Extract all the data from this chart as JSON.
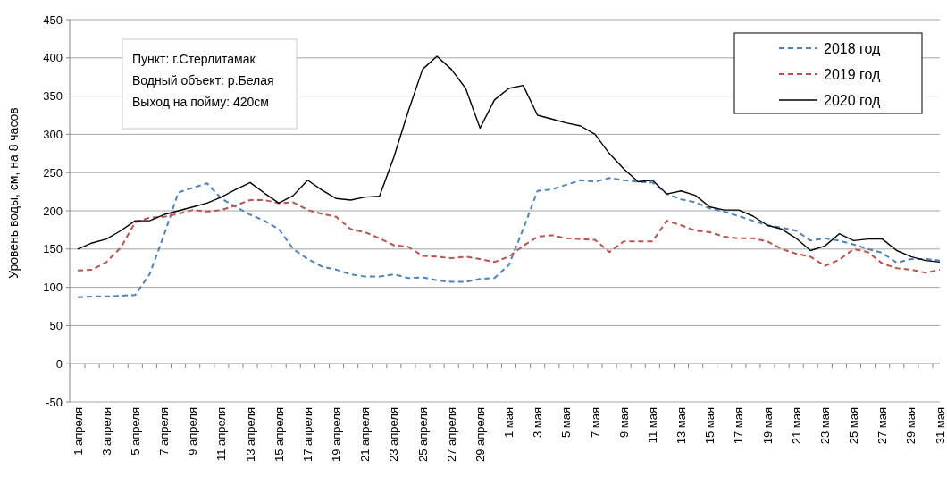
{
  "chart_data": {
    "type": "line",
    "ylabel": "Уровень воды, см, на 8 часов",
    "categories": [
      "1 апреля",
      null,
      "3 апреля",
      null,
      "5 апреля",
      null,
      "7 апреля",
      null,
      "9 апреля",
      null,
      "11 апреля",
      null,
      "13 апреля",
      null,
      "15 апреля",
      null,
      "17 апреля",
      null,
      "19 апреля",
      null,
      "21 апреля",
      null,
      "23 апреля",
      null,
      "25 апреля",
      null,
      "27 апреля",
      null,
      "29 апреля",
      null,
      "1 мая",
      null,
      "3 мая",
      null,
      "5 мая",
      null,
      "7 мая",
      null,
      "9 мая",
      null,
      "11 мая",
      null,
      "13 мая",
      null,
      "15 мая",
      null,
      "17 мая",
      null,
      "19 мая",
      null,
      "21 мая",
      null,
      "23 мая",
      null,
      "25 мая",
      null,
      "27 мая",
      null,
      "29 мая",
      null,
      "31 мая"
    ],
    "series": [
      {
        "name": "2018 год",
        "color": "#4f81bd",
        "line_style": "dashed",
        "values": [
          87,
          88,
          88,
          89,
          90,
          117,
          168,
          224,
          230,
          236,
          216,
          205,
          195,
          187,
          176,
          150,
          137,
          127,
          123,
          117,
          114,
          114,
          117,
          112,
          113,
          109,
          107,
          107,
          111,
          112,
          129,
          176,
          226,
          228,
          234,
          240,
          238,
          243,
          240,
          238,
          237,
          222,
          215,
          211,
          203,
          199,
          193,
          187,
          181,
          178,
          174,
          161,
          164,
          161,
          156,
          150,
          145,
          132,
          137,
          137,
          135
        ]
      },
      {
        "name": "2019 год",
        "color": "#c0504d",
        "line_style": "dashed",
        "values": [
          122,
          123,
          133,
          152,
          185,
          191,
          192,
          196,
          201,
          199,
          201,
          207,
          214,
          214,
          210,
          211,
          201,
          196,
          192,
          176,
          172,
          164,
          155,
          153,
          141,
          140,
          138,
          140,
          137,
          133,
          140,
          154,
          166,
          168,
          164,
          163,
          162,
          146,
          160,
          160,
          160,
          187,
          181,
          174,
          172,
          166,
          164,
          164,
          160,
          150,
          144,
          140,
          128,
          136,
          150,
          146,
          131,
          125,
          123,
          119,
          123
        ]
      },
      {
        "name": "2020 год",
        "color": "#000000",
        "line_style": "solid",
        "values": [
          150,
          158,
          163,
          174,
          187,
          187,
          195,
          200,
          205,
          210,
          218,
          228,
          237,
          223,
          210,
          220,
          240,
          227,
          216,
          214,
          218,
          219,
          270,
          330,
          385,
          402,
          385,
          360,
          308,
          345,
          360,
          364,
          325,
          320,
          315,
          311,
          300,
          275,
          255,
          238,
          240,
          222,
          226,
          220,
          205,
          201,
          201,
          193,
          181,
          176,
          164,
          148,
          154,
          170,
          161,
          163,
          163,
          148,
          140,
          135,
          133
        ]
      }
    ],
    "ylim": [
      -50,
      450
    ],
    "yticks": [
      -50,
      0,
      50,
      100,
      150,
      200,
      250,
      300,
      350,
      400,
      450
    ],
    "grid": "y",
    "legend": "top right",
    "marker": "none",
    "annotations": [
      "Пункт: г.Стерлитамак",
      "Водный объект: р.Белая",
      "Выход на пойму: 420см"
    ]
  }
}
